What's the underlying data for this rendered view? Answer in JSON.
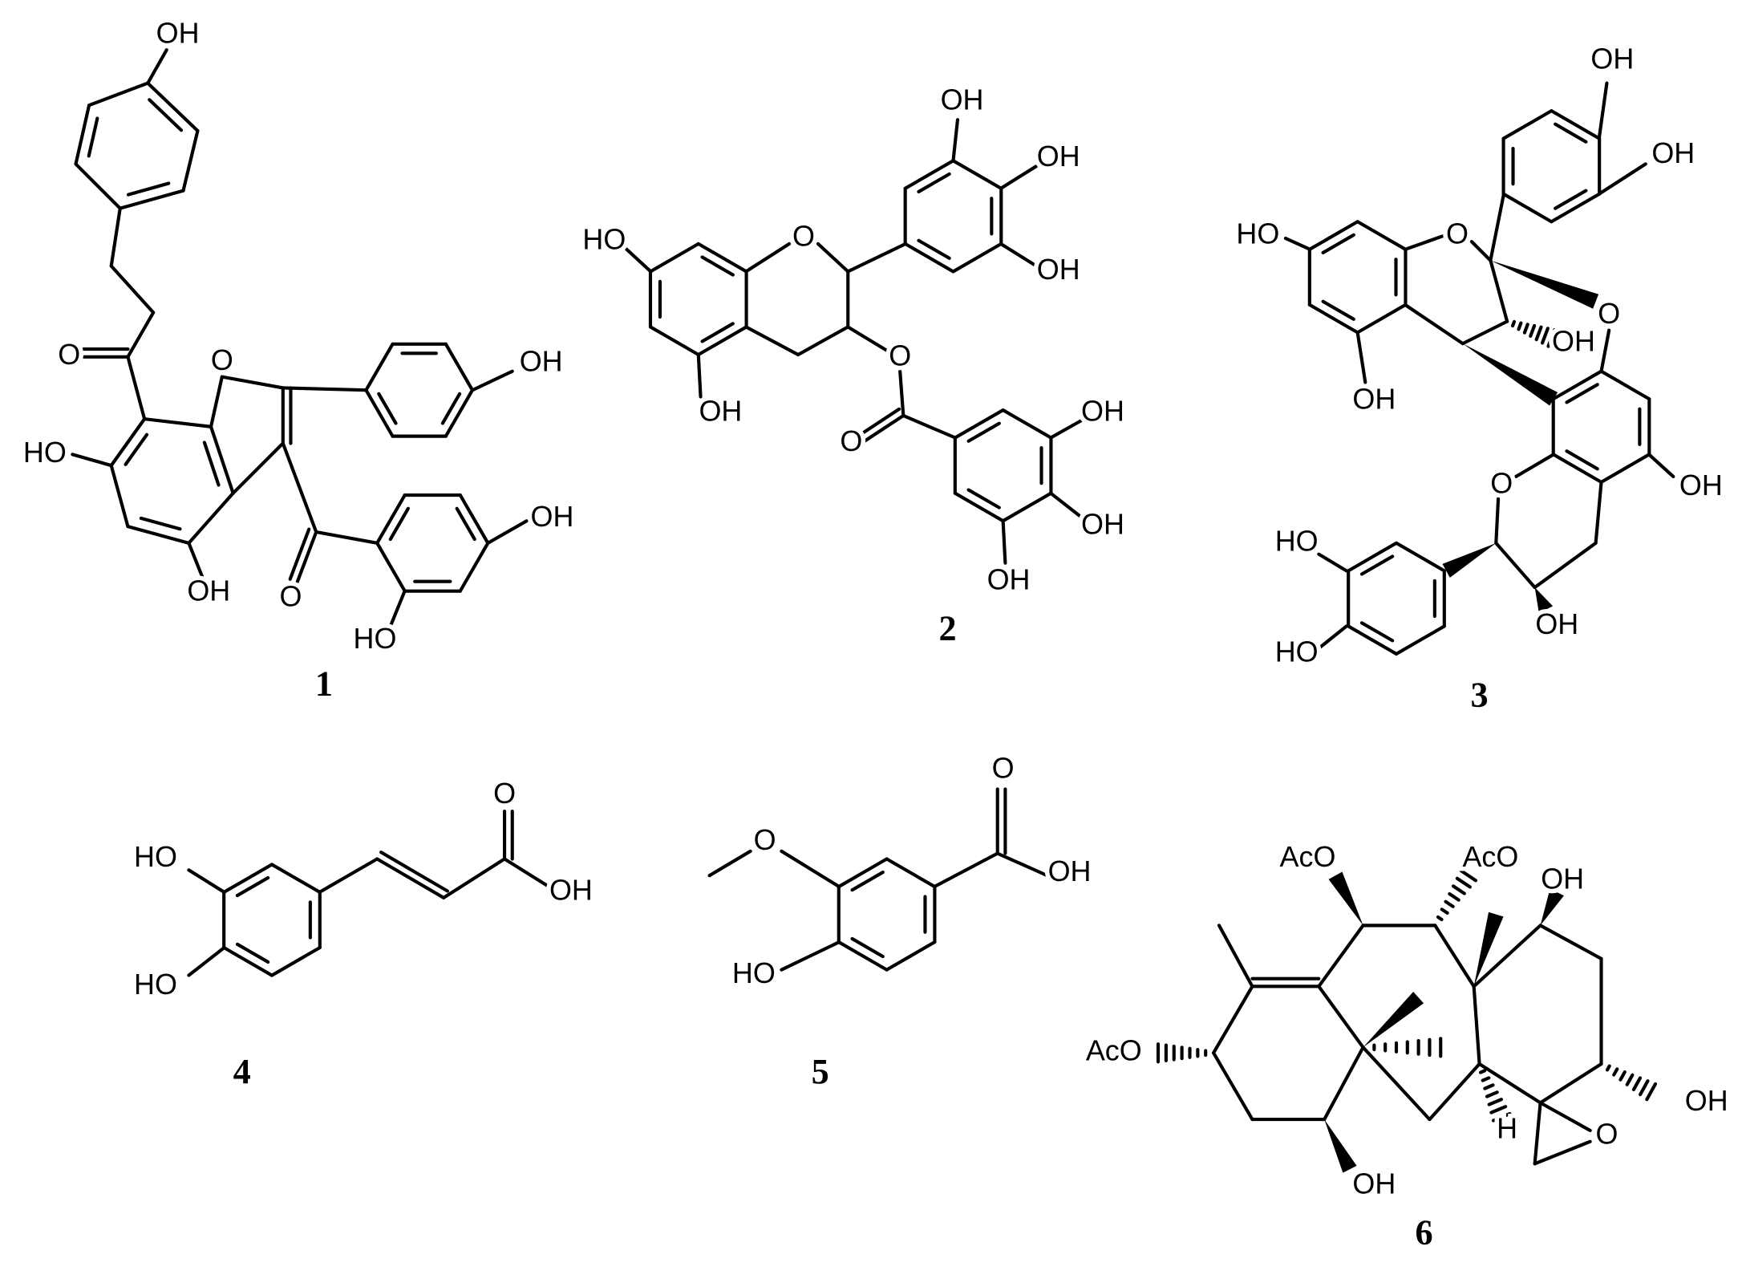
{
  "compounds": [
    {
      "number": "1",
      "atoms": [
        "OH",
        "O",
        "O",
        "OH",
        "HO",
        "OH",
        "OH",
        "O",
        "HO"
      ]
    },
    {
      "number": "2",
      "atoms": [
        "OH",
        "OH",
        "HO",
        "O",
        "OH",
        "O",
        "OH",
        "O",
        "OH",
        "OH",
        "OH"
      ]
    },
    {
      "number": "3",
      "atoms": [
        "OH",
        "OH",
        "HO",
        "O",
        "O",
        "OH",
        "OH",
        "O",
        "OH",
        "HO",
        "OH",
        "HO"
      ]
    },
    {
      "number": "4",
      "atoms": [
        "O",
        "HO",
        "OH",
        "HO"
      ]
    },
    {
      "number": "5",
      "atoms": [
        "O",
        "O",
        "OH",
        "HO"
      ]
    },
    {
      "number": "6",
      "atoms": [
        "AcO",
        "AcO",
        "OH",
        "AcO",
        "OH",
        "H",
        "O",
        "OH"
      ]
    }
  ]
}
